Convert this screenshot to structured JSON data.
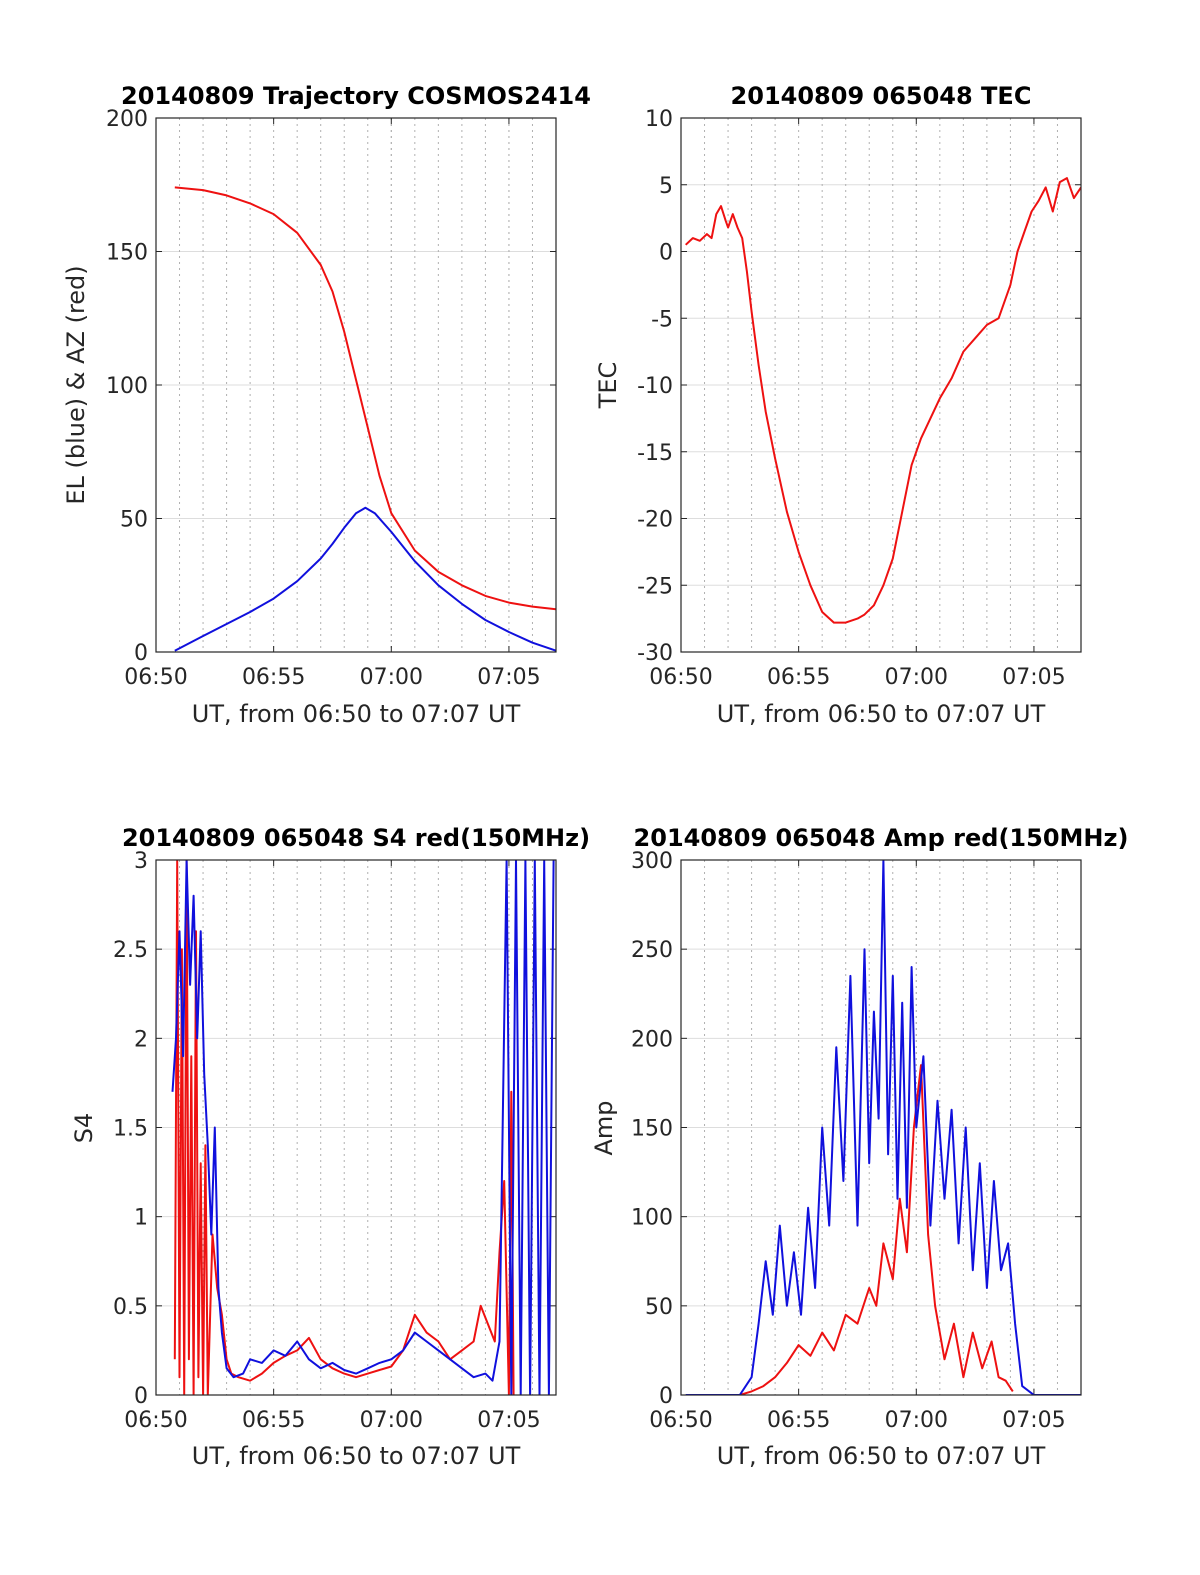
{
  "colors": {
    "red": "#ee1111",
    "blue": "#1010dd"
  },
  "chart_data": [
    {
      "type": "line",
      "title": "20140809 Trajectory COSMOS2414",
      "xlabel": "UT, from 06:50 to 07:07 UT",
      "ylabel": "EL (blue) & AZ (red)",
      "xlim": [
        0,
        17
      ],
      "ylim": [
        0,
        200
      ],
      "xticks": [
        0,
        5,
        10,
        15
      ],
      "xticklabels": [
        "06:50",
        "06:55",
        "07:00",
        "07:05"
      ],
      "yticks": [
        0,
        50,
        100,
        150,
        200
      ],
      "yticklabels": [
        "0",
        "50",
        "100",
        "150",
        "200"
      ],
      "vgrid_x": [
        1,
        2,
        3,
        4,
        6,
        7,
        8,
        9,
        10,
        11,
        12,
        13,
        14,
        15,
        16
      ],
      "series": [
        {
          "color": "red",
          "x": [
            0.8,
            2,
            3,
            4,
            5,
            6,
            7,
            7.5,
            8,
            8.5,
            9,
            9.5,
            10,
            11,
            12,
            13,
            14,
            15,
            16,
            17
          ],
          "y": [
            174,
            173,
            171,
            168,
            164,
            157,
            145,
            135,
            120,
            102,
            84,
            66,
            52,
            38,
            30,
            25,
            21,
            18.5,
            17,
            16
          ]
        },
        {
          "color": "blue",
          "x": [
            0.8,
            2,
            3,
            4,
            5,
            6,
            7,
            7.5,
            8,
            8.5,
            8.9,
            9.3,
            10,
            11,
            12,
            13,
            14,
            15,
            16,
            17
          ],
          "y": [
            0.5,
            6,
            10.5,
            15,
            20,
            26.5,
            35,
            40.5,
            46.5,
            52,
            54,
            52,
            45,
            34,
            25,
            18,
            12,
            7.5,
            3.5,
            0.5
          ]
        }
      ]
    },
    {
      "type": "line",
      "title": "20140809 065048 TEC",
      "xlabel": "UT, from 06:50 to 07:07 UT",
      "ylabel": "TEC",
      "xlim": [
        0,
        17
      ],
      "ylim": [
        -30,
        10
      ],
      "xticks": [
        0,
        5,
        10,
        15
      ],
      "xticklabels": [
        "06:50",
        "06:55",
        "07:00",
        "07:05"
      ],
      "yticks": [
        -30,
        -25,
        -20,
        -15,
        -10,
        -5,
        0,
        5,
        10
      ],
      "yticklabels": [
        "-30",
        "-25",
        "-20",
        "-15",
        "-10",
        "-5",
        "0",
        "5",
        "10"
      ],
      "vgrid_x": [
        1,
        2,
        3,
        4,
        6,
        7,
        8,
        9,
        10,
        11,
        12,
        13,
        14,
        15,
        16
      ],
      "series": [
        {
          "color": "red",
          "x": [
            0.2,
            0.5,
            0.8,
            1.1,
            1.3,
            1.5,
            1.7,
            1.9,
            2.0,
            2.2,
            2.4,
            2.6,
            2.8,
            3.0,
            3.3,
            3.6,
            4.0,
            4.5,
            5.0,
            5.5,
            6.0,
            6.5,
            7.0,
            7.5,
            7.8,
            8.2,
            8.6,
            9.0,
            9.4,
            9.8,
            10.2,
            10.6,
            11.0,
            11.5,
            12.0,
            12.5,
            13.0,
            13.5,
            14.0,
            14.3,
            14.6,
            14.9,
            15.2,
            15.5,
            15.8,
            16.1,
            16.4,
            16.7,
            17.0
          ],
          "y": [
            0.5,
            1.0,
            0.8,
            1.3,
            1.0,
            2.8,
            3.4,
            2.3,
            1.8,
            2.8,
            1.8,
            1.0,
            -1.5,
            -4.5,
            -8.5,
            -12.0,
            -15.5,
            -19.5,
            -22.5,
            -25.0,
            -27.0,
            -27.8,
            -27.8,
            -27.5,
            -27.2,
            -26.5,
            -25.0,
            -23.0,
            -19.5,
            -16.0,
            -14.0,
            -12.5,
            -11.0,
            -9.5,
            -7.5,
            -6.5,
            -5.5,
            -5.0,
            -2.5,
            0.0,
            1.5,
            3.0,
            3.8,
            4.8,
            3.0,
            5.2,
            5.5,
            4.0,
            4.8
          ]
        }
      ]
    },
    {
      "type": "line",
      "title": "20140809 065048 S4 red(150MHz)",
      "xlabel": "UT, from 06:50 to 07:07 UT",
      "ylabel": "S4",
      "xlim": [
        0,
        17
      ],
      "ylim": [
        0,
        3
      ],
      "xticks": [
        0,
        5,
        10,
        15
      ],
      "xticklabels": [
        "06:50",
        "06:55",
        "07:00",
        "07:05"
      ],
      "yticks": [
        0,
        0.5,
        1,
        1.5,
        2,
        2.5,
        3
      ],
      "yticklabels": [
        "0",
        "0.5",
        "1",
        "1.5",
        "2",
        "2.5",
        "3"
      ],
      "vgrid_x": [
        1,
        2,
        3,
        4,
        6,
        7,
        8,
        9,
        10,
        11,
        12,
        13,
        14,
        15,
        16
      ],
      "series": [
        {
          "color": "red",
          "x": [
            0.8,
            0.9,
            1.0,
            1.1,
            1.2,
            1.3,
            1.4,
            1.5,
            1.6,
            1.7,
            1.8,
            1.9,
            2.0,
            2.1,
            2.2,
            2.4,
            2.6,
            2.8,
            3.0,
            3.2,
            3.5,
            4.0,
            4.5,
            5.0,
            5.5,
            6.0,
            6.5,
            7.0,
            7.5,
            8.0,
            8.5,
            9.0,
            9.5,
            10.0,
            10.5,
            11.0,
            11.5,
            12.0,
            12.5,
            13.0,
            13.5,
            13.8,
            14.1,
            14.4,
            14.6,
            14.8,
            15.0,
            15.1,
            15.2
          ],
          "y": [
            0.2,
            3.0,
            0.1,
            2.5,
            0.0,
            3.0,
            0.2,
            1.9,
            0.0,
            2.6,
            0.1,
            1.3,
            0.0,
            1.4,
            0.0,
            0.9,
            0.6,
            0.45,
            0.2,
            0.12,
            0.1,
            0.08,
            0.12,
            0.18,
            0.22,
            0.25,
            0.32,
            0.2,
            0.15,
            0.12,
            0.1,
            0.12,
            0.14,
            0.16,
            0.25,
            0.45,
            0.35,
            0.3,
            0.2,
            0.25,
            0.3,
            0.5,
            0.4,
            0.3,
            0.8,
            1.2,
            0.0,
            1.7,
            0.0
          ]
        },
        {
          "color": "blue",
          "x": [
            0.7,
            0.85,
            1.0,
            1.15,
            1.3,
            1.45,
            1.6,
            1.75,
            1.9,
            2.05,
            2.2,
            2.35,
            2.5,
            2.65,
            2.8,
            3.0,
            3.3,
            3.7,
            4.0,
            4.5,
            5.0,
            5.5,
            6.0,
            6.5,
            7.0,
            7.5,
            8.0,
            8.5,
            9.0,
            9.5,
            10.0,
            10.5,
            11.0,
            11.5,
            12.0,
            12.5,
            13.0,
            13.5,
            14.0,
            14.3,
            14.6,
            14.9,
            15.1,
            15.3,
            15.5,
            15.7,
            15.9,
            16.1,
            16.3,
            16.5,
            16.7,
            16.9
          ],
          "y": [
            1.7,
            2.0,
            2.6,
            1.9,
            3.0,
            2.3,
            2.8,
            2.0,
            2.6,
            1.8,
            1.4,
            0.9,
            1.5,
            0.6,
            0.35,
            0.15,
            0.1,
            0.12,
            0.2,
            0.18,
            0.25,
            0.22,
            0.3,
            0.2,
            0.15,
            0.18,
            0.14,
            0.12,
            0.15,
            0.18,
            0.2,
            0.25,
            0.35,
            0.3,
            0.25,
            0.2,
            0.15,
            0.1,
            0.12,
            0.08,
            0.3,
            3.0,
            0.0,
            3.0,
            0.0,
            3.0,
            0.0,
            3.0,
            0.0,
            3.0,
            0.0,
            3.0
          ]
        }
      ]
    },
    {
      "type": "line",
      "title": "20140809 065048 Amp red(150MHz)",
      "xlabel": "UT, from 06:50 to 07:07 UT",
      "ylabel": "Amp",
      "xlim": [
        0,
        17
      ],
      "ylim": [
        0,
        300
      ],
      "xticks": [
        0,
        5,
        10,
        15
      ],
      "xticklabels": [
        "06:50",
        "06:55",
        "07:00",
        "07:05"
      ],
      "yticks": [
        0,
        50,
        100,
        150,
        200,
        250,
        300
      ],
      "yticklabels": [
        "0",
        "50",
        "100",
        "150",
        "200",
        "250",
        "300"
      ],
      "vgrid_x": [
        1,
        2,
        3,
        4,
        6,
        7,
        8,
        9,
        10,
        11,
        12,
        13,
        14,
        15,
        16
      ],
      "series": [
        {
          "color": "red",
          "x": [
            2.5,
            3.0,
            3.5,
            4.0,
            4.5,
            5.0,
            5.5,
            6.0,
            6.5,
            7.0,
            7.5,
            8.0,
            8.3,
            8.6,
            9.0,
            9.3,
            9.6,
            9.9,
            10.2,
            10.5,
            10.8,
            11.2,
            11.6,
            12.0,
            12.4,
            12.8,
            13.2,
            13.5,
            13.8,
            14.1
          ],
          "y": [
            0,
            2,
            5,
            10,
            18,
            28,
            22,
            35,
            25,
            45,
            40,
            60,
            50,
            85,
            65,
            110,
            80,
            150,
            185,
            90,
            50,
            20,
            40,
            10,
            35,
            15,
            30,
            10,
            8,
            2
          ]
        },
        {
          "color": "blue",
          "x": [
            0.2,
            1.5,
            2.5,
            3.0,
            3.3,
            3.6,
            3.9,
            4.2,
            4.5,
            4.8,
            5.1,
            5.4,
            5.7,
            6.0,
            6.3,
            6.6,
            6.9,
            7.2,
            7.5,
            7.8,
            8.0,
            8.2,
            8.4,
            8.6,
            8.8,
            9.0,
            9.2,
            9.4,
            9.6,
            9.8,
            10.0,
            10.3,
            10.6,
            10.9,
            11.2,
            11.5,
            11.8,
            12.1,
            12.4,
            12.7,
            13.0,
            13.3,
            13.6,
            13.9,
            14.2,
            14.5,
            15.0,
            16.0,
            17.0
          ],
          "y": [
            0,
            0,
            0,
            10,
            40,
            75,
            45,
            95,
            50,
            80,
            45,
            105,
            60,
            150,
            95,
            195,
            120,
            235,
            95,
            250,
            130,
            215,
            155,
            300,
            135,
            235,
            110,
            220,
            105,
            240,
            150,
            190,
            95,
            165,
            110,
            160,
            85,
            150,
            70,
            130,
            60,
            120,
            70,
            85,
            40,
            5,
            0,
            0,
            0
          ]
        }
      ]
    }
  ]
}
